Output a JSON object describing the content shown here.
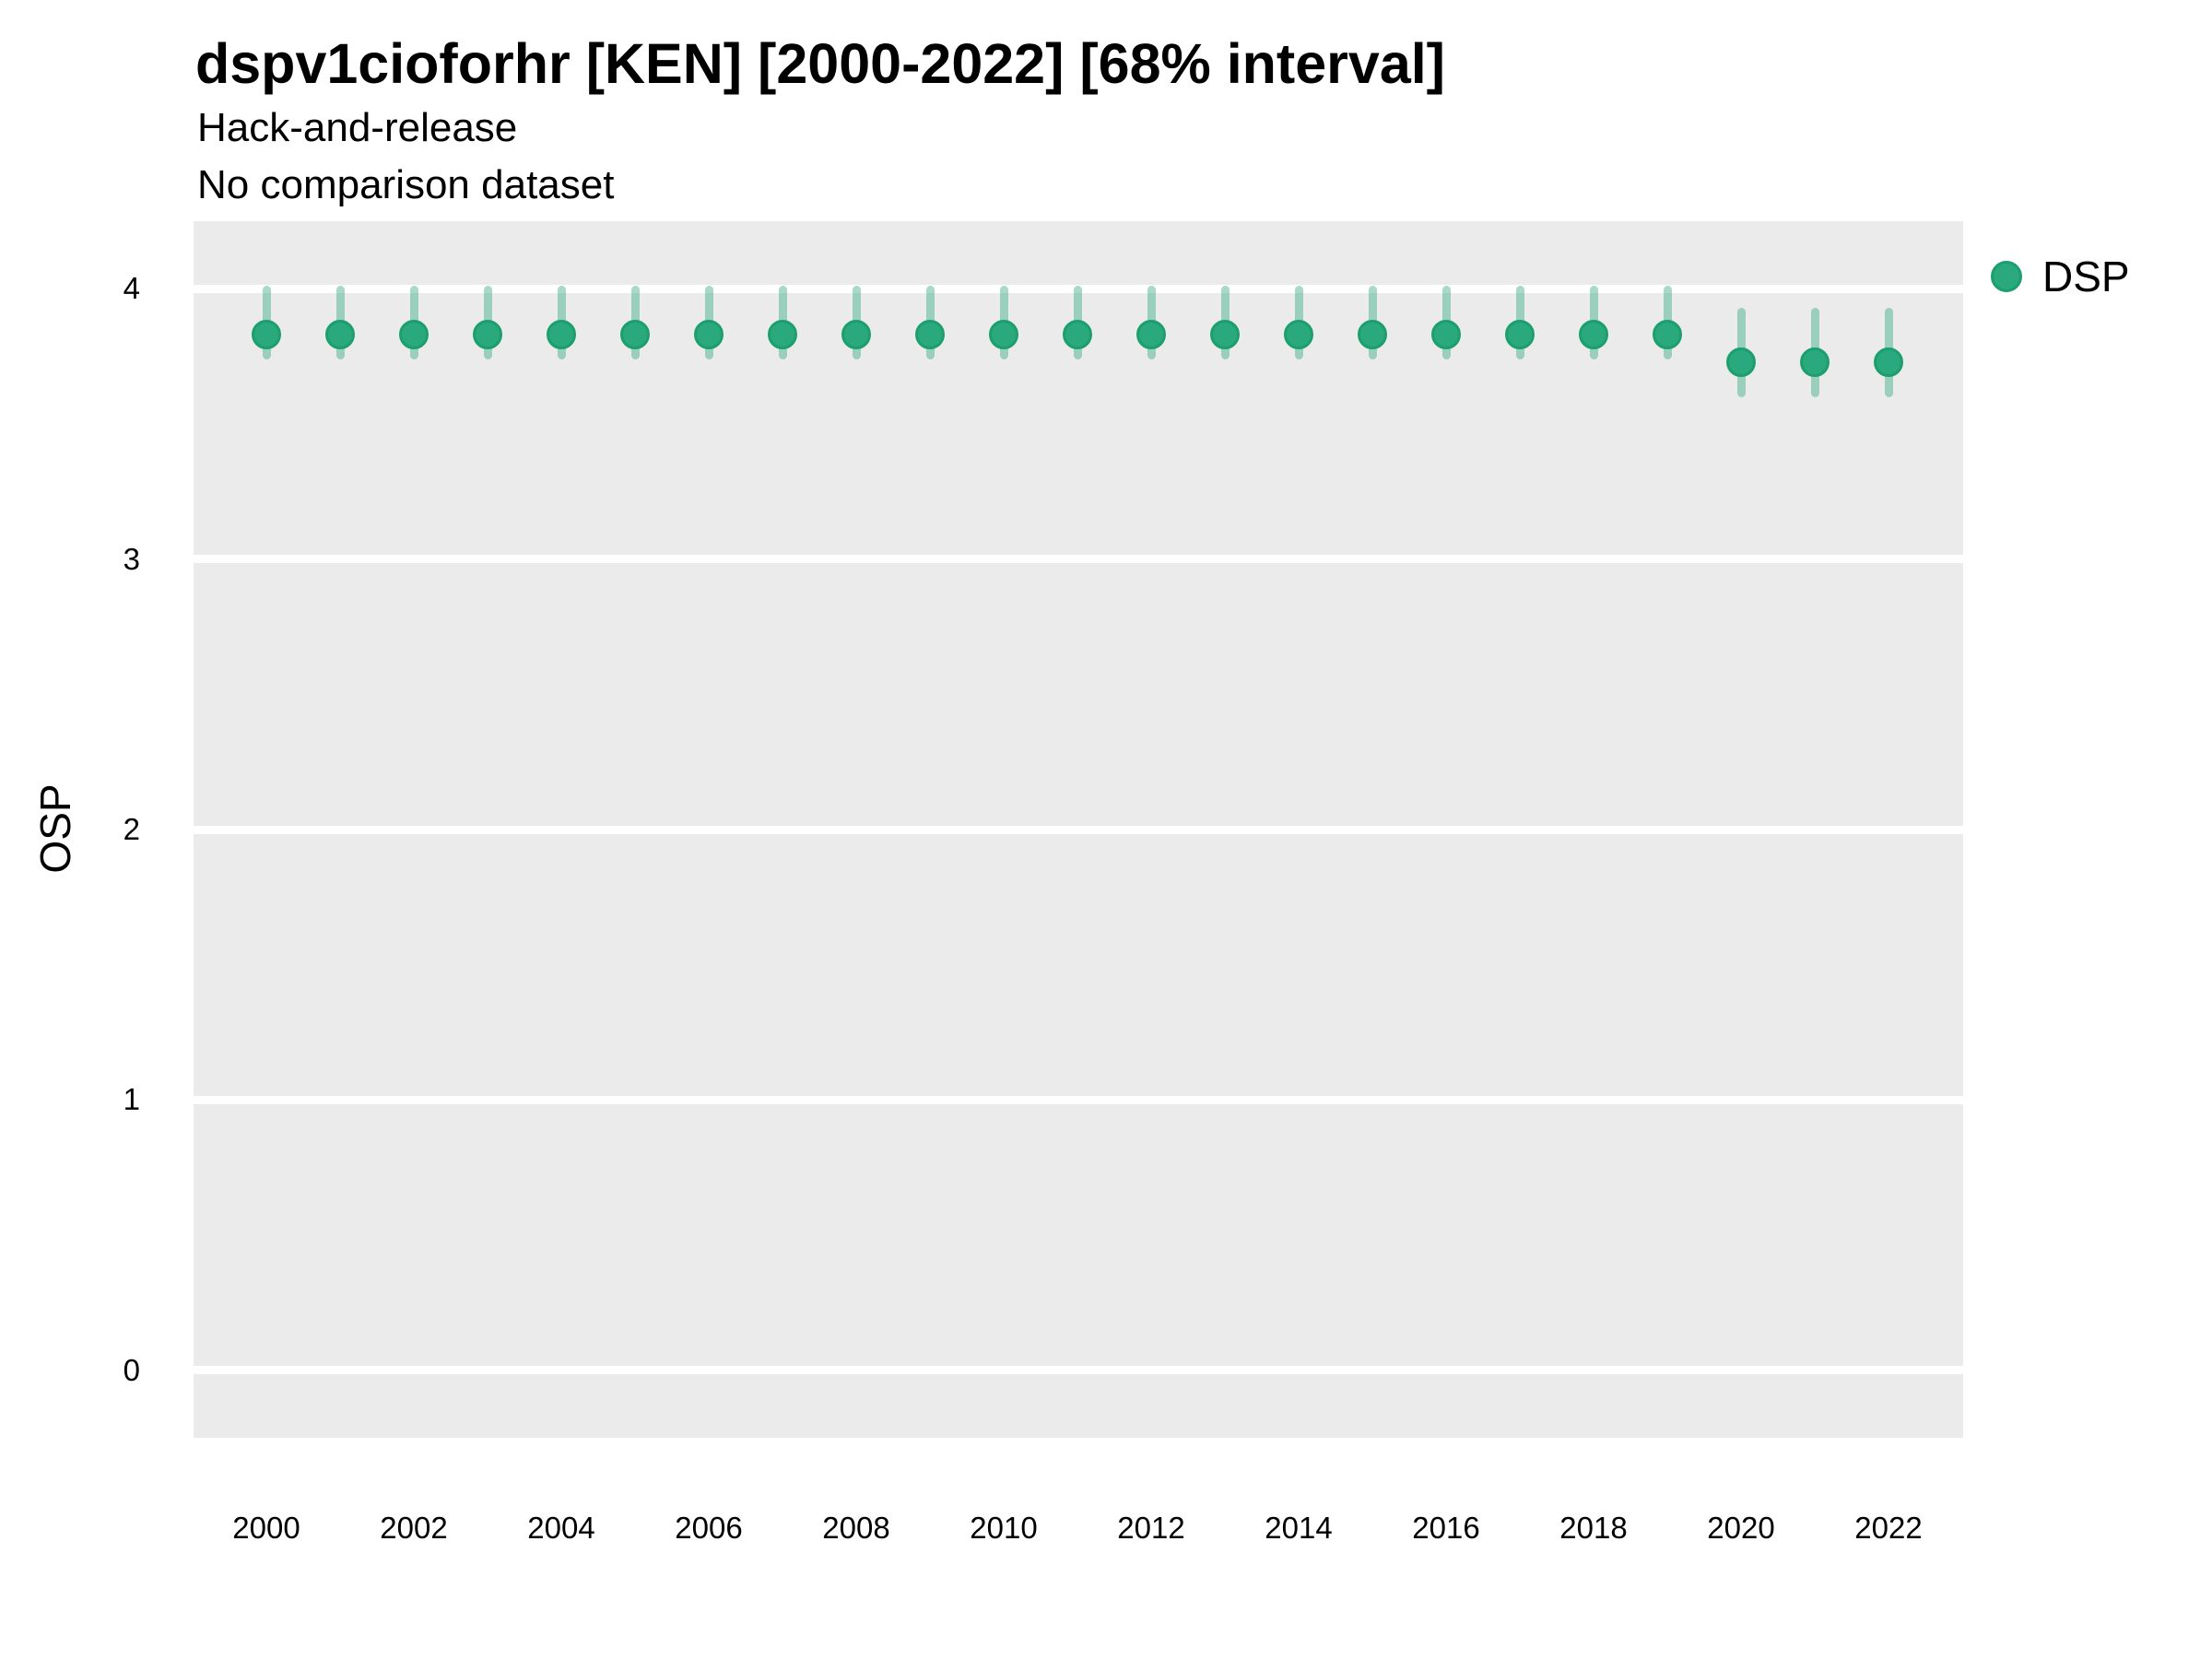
{
  "chart_data": {
    "type": "pointrange",
    "title": "dspv1cioforhr [KEN] [2000-2022] [68% interval]",
    "subtitle1": "Hack-and-release",
    "subtitle2": "No comparison dataset",
    "xlabel": "",
    "ylabel": "OSP",
    "interval_label": "68% interval",
    "legend_position": "right",
    "grid": "major-horizontal",
    "panel_bg": "#ebebeb",
    "grid_color": "#ffffff",
    "point_fill": "#2aa87e",
    "point_stroke": "#1d9e6e",
    "range_color": "rgba(43, 168, 126, 0.42)",
    "y_ticks": [
      0,
      1,
      2,
      3,
      4
    ],
    "x_ticks": [
      2000,
      2002,
      2004,
      2006,
      2008,
      2010,
      2012,
      2014,
      2016,
      2018,
      2020,
      2022
    ],
    "y_axis_range": [
      -0.25,
      4.25
    ],
    "series": [
      {
        "name": "DSP",
        "x": [
          2000,
          2001,
          2002,
          2003,
          2004,
          2005,
          2006,
          2007,
          2008,
          2009,
          2010,
          2011,
          2012,
          2013,
          2014,
          2015,
          2016,
          2017,
          2018,
          2019,
          2020,
          2021,
          2022
        ],
        "y": [
          3.83,
          3.83,
          3.83,
          3.83,
          3.83,
          3.83,
          3.83,
          3.83,
          3.83,
          3.83,
          3.83,
          3.83,
          3.83,
          3.83,
          3.83,
          3.83,
          3.83,
          3.83,
          3.83,
          3.83,
          3.73,
          3.73,
          3.73
        ],
        "y_lo": [
          3.74,
          3.74,
          3.74,
          3.74,
          3.74,
          3.74,
          3.74,
          3.74,
          3.74,
          3.74,
          3.74,
          3.74,
          3.74,
          3.74,
          3.74,
          3.74,
          3.74,
          3.74,
          3.74,
          3.74,
          3.6,
          3.6,
          3.6
        ],
        "y_hi": [
          4.01,
          4.01,
          4.01,
          4.01,
          4.01,
          4.01,
          4.01,
          4.01,
          4.01,
          4.01,
          4.01,
          4.01,
          4.01,
          4.01,
          4.01,
          4.01,
          4.01,
          4.01,
          4.01,
          4.01,
          3.93,
          3.93,
          3.93
        ]
      }
    ]
  }
}
